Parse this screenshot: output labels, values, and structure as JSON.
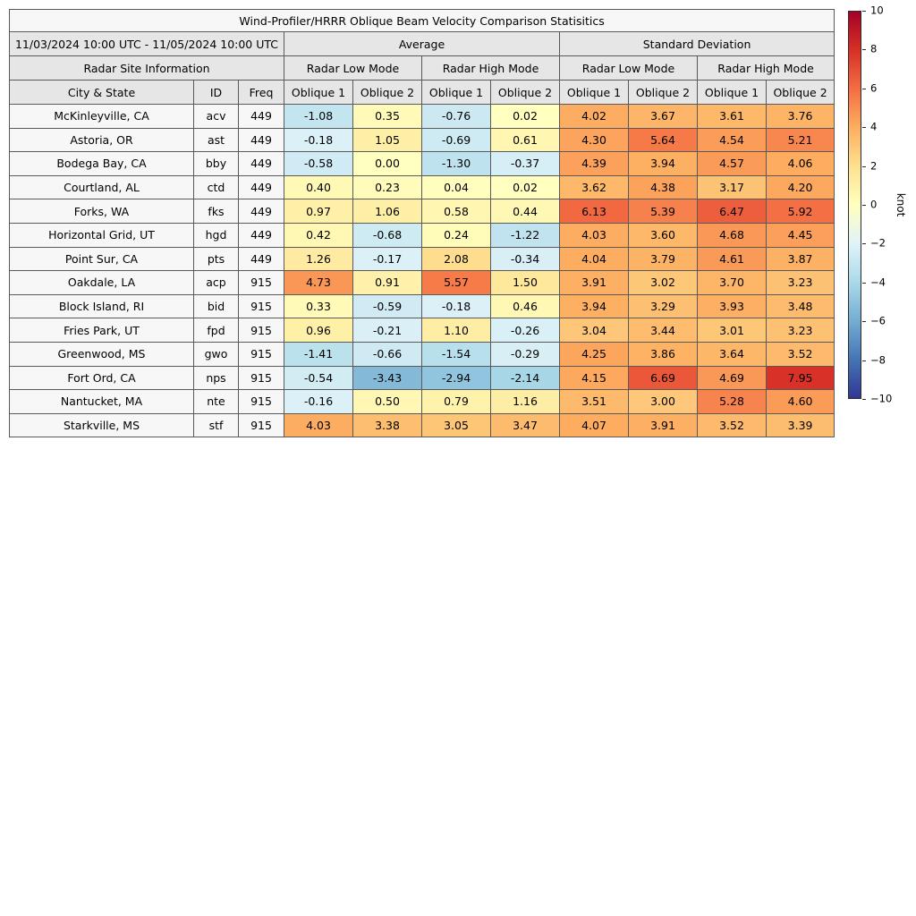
{
  "chart_data": {
    "type": "table",
    "title": "Wind-Profiler/HRRR Oblique Beam Velocity Comparison Statisitics",
    "period": "11/03/2024 10:00 UTC - 11/05/2024 10:00 UTC",
    "group_headers": [
      "Average",
      "Standard Deviation"
    ],
    "section_header": "Radar Site Information",
    "mode_headers": [
      "Radar Low Mode",
      "Radar High Mode",
      "Radar Low Mode",
      "Radar High Mode"
    ],
    "column_headers": [
      "City & State",
      "ID",
      "Freq",
      "Oblique 1",
      "Oblique 2",
      "Oblique 1",
      "Oblique 2",
      "Oblique 1",
      "Oblique 2",
      "Oblique 1",
      "Oblique 2"
    ],
    "rows": [
      {
        "city": "McKinleyville, CA",
        "id": "acv",
        "freq": "449",
        "values": [
          -1.08,
          0.35,
          -0.76,
          0.02,
          4.02,
          3.67,
          3.61,
          3.76
        ]
      },
      {
        "city": "Astoria, OR",
        "id": "ast",
        "freq": "449",
        "values": [
          -0.18,
          1.05,
          -0.69,
          0.61,
          4.3,
          5.64,
          4.54,
          5.21
        ]
      },
      {
        "city": "Bodega Bay, CA",
        "id": "bby",
        "freq": "449",
        "values": [
          -0.58,
          0.0,
          -1.3,
          -0.37,
          4.39,
          3.94,
          4.57,
          4.06
        ]
      },
      {
        "city": "Courtland, AL",
        "id": "ctd",
        "freq": "449",
        "values": [
          0.4,
          0.23,
          0.04,
          0.02,
          3.62,
          4.38,
          3.17,
          4.2
        ]
      },
      {
        "city": "Forks, WA",
        "id": "fks",
        "freq": "449",
        "values": [
          0.97,
          1.06,
          0.58,
          0.44,
          6.13,
          5.39,
          6.47,
          5.92
        ]
      },
      {
        "city": "Horizontal Grid, UT",
        "id": "hgd",
        "freq": "449",
        "values": [
          0.42,
          -0.68,
          0.24,
          -1.22,
          4.03,
          3.6,
          4.68,
          4.45
        ]
      },
      {
        "city": "Point Sur, CA",
        "id": "pts",
        "freq": "449",
        "values": [
          1.26,
          -0.17,
          2.08,
          -0.34,
          4.04,
          3.79,
          4.61,
          3.87
        ]
      },
      {
        "city": "Oakdale, LA",
        "id": "acp",
        "freq": "915",
        "values": [
          4.73,
          0.91,
          5.57,
          1.5,
          3.91,
          3.02,
          3.7,
          3.23
        ]
      },
      {
        "city": "Block Island, RI",
        "id": "bid",
        "freq": "915",
        "values": [
          0.33,
          -0.59,
          -0.18,
          0.46,
          3.94,
          3.29,
          3.93,
          3.48
        ]
      },
      {
        "city": "Fries Park, UT",
        "id": "fpd",
        "freq": "915",
        "values": [
          0.96,
          -0.21,
          1.1,
          -0.26,
          3.04,
          3.44,
          3.01,
          3.23
        ]
      },
      {
        "city": "Greenwood, MS",
        "id": "gwo",
        "freq": "915",
        "values": [
          -1.41,
          -0.66,
          -1.54,
          -0.29,
          4.25,
          3.86,
          3.64,
          3.52
        ]
      },
      {
        "city": "Fort Ord, CA",
        "id": "nps",
        "freq": "915",
        "values": [
          -0.54,
          -3.43,
          -2.94,
          -2.14,
          4.15,
          6.69,
          4.69,
          7.95
        ]
      },
      {
        "city": "Nantucket, MA",
        "id": "nte",
        "freq": "915",
        "values": [
          -0.16,
          0.5,
          0.79,
          1.16,
          3.51,
          3.0,
          5.28,
          4.6
        ]
      },
      {
        "city": "Starkville, MS",
        "id": "stf",
        "freq": "915",
        "values": [
          4.03,
          3.38,
          3.05,
          3.47,
          4.07,
          3.91,
          3.52,
          3.39
        ]
      }
    ],
    "colorbar": {
      "label": "knot",
      "min": -10,
      "max": 10,
      "ticks": [
        10,
        8,
        6,
        4,
        2,
        0,
        -2,
        -4,
        -6,
        -8,
        -10
      ],
      "gradient_top_to_bottom": [
        "#a50026",
        "#d73027",
        "#f46d43",
        "#fdae61",
        "#fee090",
        "#ffffbf",
        "#e0f3f8",
        "#abd9e9",
        "#74add1",
        "#4575b4",
        "#313695"
      ],
      "negative_stops": [
        [
          -8,
          "#313695"
        ],
        [
          -6,
          "#4575b4"
        ],
        [
          -4,
          "#74add1"
        ],
        [
          -2,
          "#abd9e9"
        ],
        [
          0,
          "#e0f3f8"
        ]
      ],
      "positive_stops": [
        [
          0,
          "#ffffbf"
        ],
        [
          2,
          "#fee090"
        ],
        [
          4,
          "#fdae61"
        ],
        [
          6,
          "#f46d43"
        ],
        [
          8,
          "#d73027"
        ],
        [
          10,
          "#a50026"
        ]
      ]
    }
  }
}
